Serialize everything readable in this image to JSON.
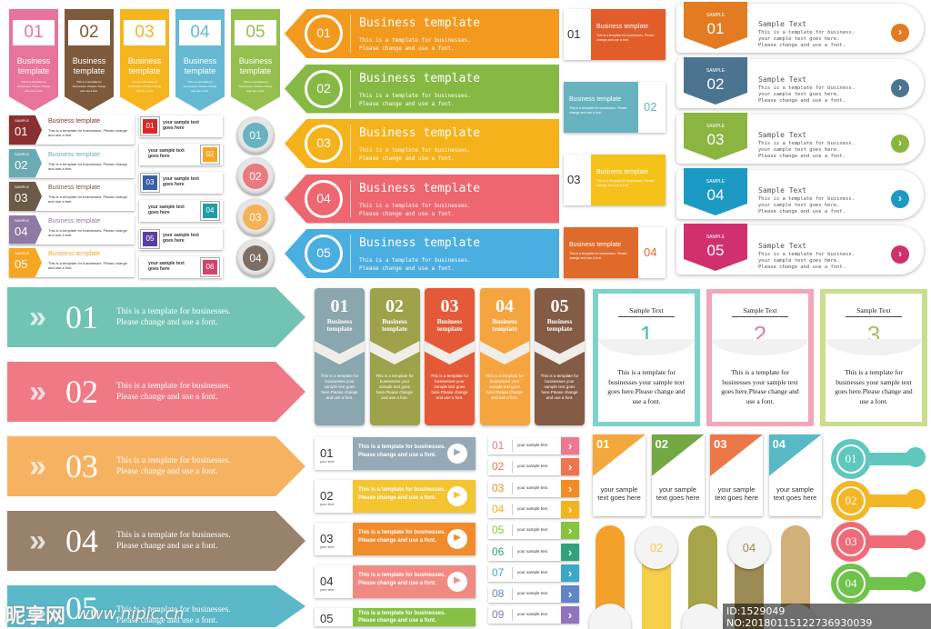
{
  "colors": [
    "#e9749b",
    "#7d5a3c",
    "#f5b51f",
    "#65b9d3",
    "#95c04f"
  ],
  "row5colors": [
    "#e97a8d",
    "#6aaab2",
    "#e28e38",
    "#8e7aa5",
    "#f5a623"
  ],
  "rainbow": [
    "#f39a1e",
    "#86b943",
    "#f5b21a",
    "#ee6670",
    "#4aaee0"
  ],
  "tagcolors": [
    "#e25d2a",
    "#67b4c0",
    "#f5c21a",
    "#e06a2a"
  ],
  "rightcolors": [
    "#e27b22",
    "#4b7490",
    "#8ab540",
    "#1d9ac4",
    "#d1306e"
  ],
  "bigcolors": [
    "#71c4b3",
    "#ef7a86",
    "#f7b261",
    "#98826b",
    "#5ab8c8"
  ],
  "colcolors": [
    "#8aa6ae",
    "#9ea24a",
    "#e45a38",
    "#f5a53f",
    "#845b44"
  ],
  "cardcolors": [
    "#7dd3c7",
    "#f2a7b8",
    "#c8de8e"
  ],
  "numcardcolors": [
    "#f4a83b",
    "#74a842",
    "#ee7748",
    "#58bac6"
  ],
  "tabcolors": [
    "#95aab6",
    "#f5c431",
    "#f28b2c",
    "#f08a83",
    "#86c145"
  ],
  "listcolors": [
    "#ef7790",
    "#f17352",
    "#f58b23",
    "#f5b31e",
    "#87c540",
    "#2ea37c",
    "#3aa9c8",
    "#5f86c9",
    "#9173bf"
  ],
  "knobcolors": [
    "#5fc7bd",
    "#f5b625",
    "#f06b78",
    "#6fc24a"
  ],
  "barcolors": [
    "#f3a12b",
    "#f5ce4a",
    "#a8a44a",
    "#9b8a54",
    "#d2b07a",
    "#f06b76"
  ],
  "topTabs": {
    "nums": [
      "01",
      "02",
      "03",
      "04",
      "05"
    ],
    "title": "Business template",
    "body": "This is a template for businesses. Please change and use a font."
  },
  "leftList": {
    "sample": "SAMPLE",
    "nums": [
      "01",
      "02",
      "03",
      "04",
      "05"
    ],
    "title": "Business template",
    "body": "This is a template for businesses. Please change and use a font."
  },
  "smallTags": {
    "nums": [
      "01",
      "02",
      "03",
      "04",
      "05",
      "06"
    ],
    "text": "your sample text goes here"
  },
  "circles": [
    "01",
    "02",
    "03",
    "04"
  ],
  "ribbons": {
    "nums": [
      "01",
      "02",
      "03",
      "04",
      "05"
    ],
    "title": "Business template",
    "line1": "This is a template for businesses.",
    "line2": "Please change and use a font."
  },
  "speech": {
    "nums": [
      "01",
      "02",
      "03",
      "04"
    ],
    "title": "Business template",
    "body": "This is a template for businesses. Please change and use a font."
  },
  "rightPanels": {
    "sample": "SAMPLE",
    "nums": [
      "01",
      "02",
      "03",
      "04",
      "05"
    ],
    "title": "Sample Text",
    "line1": "This is a template for business.",
    "line2": "your sample text goes here.",
    "line3": "Please change and use a font."
  },
  "bigArrows": {
    "nums": [
      "01",
      "02",
      "03",
      "04",
      "05"
    ],
    "line1": "This is a template for businesses.",
    "line2": "Please change and use a font."
  },
  "columns": {
    "nums": [
      "01",
      "02",
      "03",
      "04",
      "05"
    ],
    "title1": "Business",
    "title2": "template",
    "body": "This is a template for businesses your sample text goes here.Please change and use a font."
  },
  "cards": {
    "head": "Sample Text",
    "nums": [
      "1",
      "2",
      "3"
    ],
    "body": "This is a template for businesses your sample text goes here.Please change and use a font."
  },
  "tabs": {
    "nums": [
      "01",
      "02",
      "03",
      "04",
      "05"
    ],
    "sub": "your text",
    "line1": "This is a template for businesses.",
    "line2": "Please change and use a font."
  },
  "numList": {
    "nums": [
      "01",
      "02",
      "03",
      "04",
      "05",
      "06",
      "07",
      "08",
      "09"
    ],
    "text": "your sample text"
  },
  "numCards": {
    "nums": [
      "01",
      "02",
      "03",
      "04"
    ],
    "text": "your sample text goes here"
  },
  "knobs": [
    "01",
    "02",
    "03",
    "04"
  ],
  "bars": {
    "nums": [
      "01",
      "02",
      "03",
      "04",
      "05",
      "06"
    ]
  },
  "watermark": {
    "logo": "昵享网",
    "site": "www.nipic.cn",
    "id": "ID:1529049 NO:20180115122736930039"
  }
}
